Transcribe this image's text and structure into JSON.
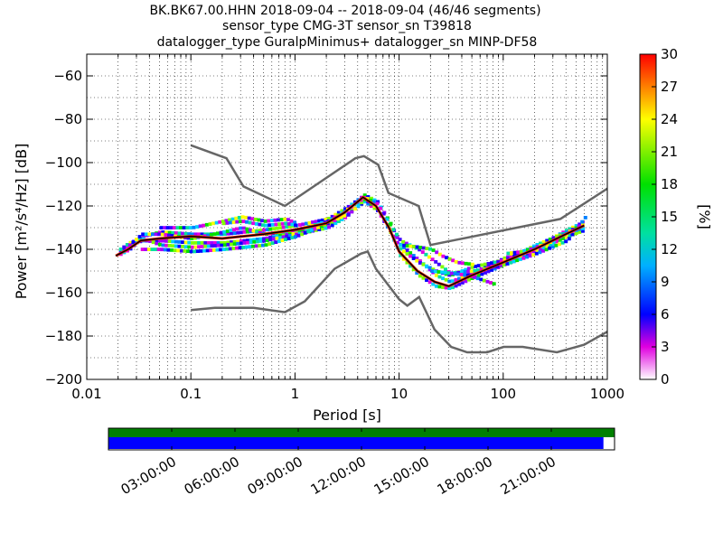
{
  "title_lines": [
    "BK.BK67.00.HHN   2018-09-04 -- 2018-09-04  (46/46 segments)",
    "sensor_type CMG-3T sensor_sn T39818",
    "datalogger_type GuralpMinimus+ datalogger_sn MINP-DF58"
  ],
  "chart_data": {
    "type": "heatmap",
    "subtype": "probabilistic power spectral density",
    "xlabel": "Period [s]",
    "ylabel": "Power [m²/s⁴/Hz] [dB]",
    "xscale": "log",
    "xlim": [
      0.01,
      1000
    ],
    "ylim": [
      -200,
      -50
    ],
    "x_ticks": [
      {
        "value": 0.01,
        "label": "0.01"
      },
      {
        "value": 0.1,
        "label": "0.1"
      },
      {
        "value": 1,
        "label": "1"
      },
      {
        "value": 10,
        "label": "10"
      },
      {
        "value": 100,
        "label": "100"
      },
      {
        "value": 1000,
        "label": "1000"
      }
    ],
    "y_ticks": [
      {
        "value": -60,
        "label": "−60"
      },
      {
        "value": -80,
        "label": "−80"
      },
      {
        "value": -100,
        "label": "−100"
      },
      {
        "value": -120,
        "label": "−120"
      },
      {
        "value": -140,
        "label": "−140"
      },
      {
        "value": -160,
        "label": "−160"
      },
      {
        "value": -180,
        "label": "−180"
      },
      {
        "value": -200,
        "label": "−200"
      }
    ],
    "grid": true,
    "colorbar": {
      "label": "[%]",
      "range": [
        0,
        30
      ],
      "ticks": [
        "0",
        "3",
        "6",
        "9",
        "12",
        "15",
        "18",
        "21",
        "24",
        "27",
        "30"
      ]
    },
    "mode_line": [
      [
        0.019,
        -143
      ],
      [
        0.025,
        -140
      ],
      [
        0.033,
        -136
      ],
      [
        0.05,
        -135
      ],
      [
        0.1,
        -134
      ],
      [
        0.2,
        -135
      ],
      [
        0.5,
        -133
      ],
      [
        1.0,
        -131
      ],
      [
        2.0,
        -128
      ],
      [
        3.0,
        -123
      ],
      [
        4.5,
        -116
      ],
      [
        6.0,
        -120
      ],
      [
        8.0,
        -130
      ],
      [
        10,
        -141
      ],
      [
        15,
        -150
      ],
      [
        22,
        -155
      ],
      [
        30,
        -157
      ],
      [
        50,
        -152
      ],
      [
        100,
        -146
      ],
      [
        200,
        -140
      ],
      [
        400,
        -133
      ],
      [
        600,
        -129
      ]
    ],
    "band_curves": [
      [
        [
          0.019,
          -143
        ],
        [
          0.025,
          -140
        ],
        [
          0.033,
          -134
        ],
        [
          0.05,
          -132
        ],
        [
          0.1,
          -133
        ],
        [
          0.2,
          -133
        ],
        [
          0.5,
          -131
        ],
        [
          1.0,
          -129
        ],
        [
          2.0,
          -126
        ],
        [
          3.0,
          -121
        ],
        [
          4.5,
          -115
        ],
        [
          6.0,
          -118
        ],
        [
          8.0,
          -128
        ],
        [
          10,
          -138
        ],
        [
          15,
          -145
        ],
        [
          22,
          -152
        ],
        [
          30,
          -155
        ],
        [
          50,
          -151
        ],
        [
          100,
          -144
        ],
        [
          200,
          -139
        ],
        [
          400,
          -131
        ],
        [
          600,
          -127
        ]
      ],
      [
        [
          0.019,
          -142
        ],
        [
          0.025,
          -138
        ],
        [
          0.033,
          -136
        ],
        [
          0.05,
          -136
        ],
        [
          0.1,
          -137
        ],
        [
          0.2,
          -137
        ],
        [
          0.5,
          -135
        ],
        [
          1.0,
          -132
        ],
        [
          2.0,
          -129
        ],
        [
          3.0,
          -124
        ],
        [
          4.5,
          -118
        ],
        [
          6.0,
          -122
        ],
        [
          8.0,
          -132
        ],
        [
          10,
          -143
        ],
        [
          15,
          -152
        ],
        [
          22,
          -157
        ],
        [
          30,
          -158
        ],
        [
          50,
          -153
        ],
        [
          100,
          -147
        ],
        [
          200,
          -141
        ],
        [
          400,
          -134
        ],
        [
          600,
          -131
        ]
      ],
      [
        [
          0.019,
          -141
        ],
        [
          0.025,
          -137
        ],
        [
          0.033,
          -135
        ],
        [
          0.05,
          -138
        ],
        [
          0.1,
          -139
        ],
        [
          0.2,
          -138
        ],
        [
          0.5,
          -136
        ],
        [
          1.0,
          -133
        ],
        [
          2.0,
          -130
        ],
        [
          3.0,
          -125
        ],
        [
          4.5,
          -117
        ],
        [
          6.0,
          -121
        ],
        [
          8.0,
          -131
        ],
        [
          10,
          -140
        ],
        [
          15,
          -146
        ],
        [
          22,
          -150
        ],
        [
          30,
          -152
        ],
        [
          50,
          -148
        ],
        [
          100,
          -145
        ],
        [
          200,
          -138
        ],
        [
          400,
          -132
        ],
        [
          600,
          -128
        ]
      ],
      [
        [
          0.025,
          -138
        ],
        [
          0.033,
          -133
        ],
        [
          0.05,
          -133
        ],
        [
          0.1,
          -135
        ],
        [
          0.2,
          -132
        ],
        [
          0.3,
          -130
        ],
        [
          0.5,
          -133
        ],
        [
          1.0,
          -131
        ],
        [
          2.0,
          -127
        ],
        [
          3.0,
          -122
        ],
        [
          4.5,
          -116
        ],
        [
          6.0,
          -119
        ],
        [
          8.0,
          -129
        ],
        [
          10,
          -136
        ],
        [
          15,
          -140
        ],
        [
          22,
          -146
        ],
        [
          30,
          -151
        ],
        [
          50,
          -150
        ],
        [
          100,
          -147
        ],
        [
          200,
          -142
        ],
        [
          400,
          -136
        ],
        [
          600,
          -125
        ]
      ],
      [
        [
          0.033,
          -140
        ],
        [
          0.05,
          -140
        ],
        [
          0.1,
          -141
        ],
        [
          0.2,
          -140
        ],
        [
          0.5,
          -138
        ],
        [
          1.0,
          -134
        ],
        [
          2.0,
          -128
        ],
        [
          3.0,
          -124
        ]
      ],
      [
        [
          0.05,
          -130
        ],
        [
          0.1,
          -130
        ],
        [
          0.2,
          -127
        ],
        [
          0.3,
          -125
        ],
        [
          0.5,
          -127
        ],
        [
          0.8,
          -126
        ],
        [
          1.0,
          -128
        ]
      ],
      [
        [
          0.2,
          -128
        ],
        [
          0.3,
          -127
        ],
        [
          0.5,
          -129
        ],
        [
          0.8,
          -128
        ],
        [
          1.0,
          -129
        ]
      ],
      [
        [
          10,
          -138
        ],
        [
          15,
          -139
        ],
        [
          20,
          -140
        ],
        [
          25,
          -143
        ],
        [
          35,
          -146
        ],
        [
          50,
          -147
        ]
      ],
      [
        [
          20,
          -150
        ],
        [
          30,
          -151
        ],
        [
          45,
          -152
        ],
        [
          60,
          -154
        ],
        [
          80,
          -156
        ]
      ],
      [
        [
          100,
          -142
        ],
        [
          150,
          -141
        ],
        [
          200,
          -139
        ],
        [
          300,
          -136
        ],
        [
          400,
          -132
        ],
        [
          600,
          -130
        ]
      ]
    ],
    "noise_models": [
      {
        "points": [
          [
            0.1,
            -92
          ],
          [
            0.22,
            -98
          ],
          [
            0.32,
            -111
          ],
          [
            0.8,
            -120
          ],
          [
            3.8,
            -98
          ],
          [
            4.6,
            -97
          ],
          [
            6.3,
            -101
          ],
          [
            7.9,
            -114
          ],
          [
            15.4,
            -120
          ],
          [
            20,
            -138
          ],
          [
            354,
            -126
          ],
          [
            1000,
            -112
          ]
        ]
      },
      {
        "points": [
          [
            0.1,
            -168
          ],
          [
            0.17,
            -167
          ],
          [
            0.4,
            -167
          ],
          [
            0.8,
            -169
          ],
          [
            1.24,
            -164
          ],
          [
            2.4,
            -149
          ],
          [
            4.3,
            -142
          ],
          [
            5.0,
            -141
          ],
          [
            6.0,
            -149
          ],
          [
            10,
            -163
          ],
          [
            12,
            -166
          ],
          [
            15.6,
            -162
          ],
          [
            21.9,
            -177
          ],
          [
            31.6,
            -185
          ],
          [
            45,
            -187.5
          ],
          [
            70,
            -187.5
          ],
          [
            101,
            -185
          ],
          [
            154,
            -185
          ],
          [
            328,
            -187.5
          ],
          [
            600,
            -184
          ],
          [
            1000,
            -178
          ]
        ]
      }
    ]
  },
  "coverage": {
    "time_ticks": [
      "03:00:00",
      "06:00:00",
      "09:00:00",
      "12:00:00",
      "15:00:00",
      "18:00:00",
      "21:00:00"
    ],
    "total_fraction": 1.0,
    "used_fraction": 0.978,
    "colors": {
      "total": "#008000",
      "used": "#0000ff"
    }
  }
}
